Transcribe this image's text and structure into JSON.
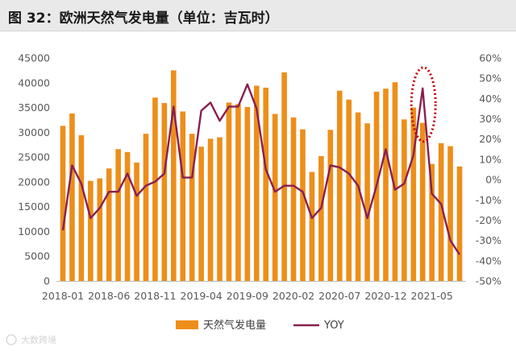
{
  "title": "图 32：欧洲天然气发电量（单位：吉瓦时）",
  "watermark": "大数跨境",
  "colors": {
    "bar": "#ED8E1A",
    "line": "#8A1F4F",
    "highlight": "#C00000",
    "axis": "#BFBFBF"
  },
  "chart_data": {
    "type": "bar+line",
    "title": "图 32：欧洲天然气发电量（单位：吉瓦时）",
    "categories": [
      "2018-01",
      "2018-02",
      "2018-03",
      "2018-04",
      "2018-05",
      "2018-06",
      "2018-07",
      "2018-08",
      "2018-09",
      "2018-10",
      "2018-11",
      "2018-12",
      "2019-01",
      "2019-02",
      "2019-03",
      "2019-04",
      "2019-05",
      "2019-06",
      "2019-07",
      "2019-08",
      "2019-09",
      "2019-10",
      "2019-11",
      "2019-12",
      "2020-01",
      "2020-02",
      "2020-03",
      "2020-04",
      "2020-05",
      "2020-06",
      "2020-07",
      "2020-08",
      "2020-09",
      "2020-10",
      "2020-11",
      "2020-12",
      "2021-01",
      "2021-02",
      "2021-03",
      "2021-04",
      "2021-05",
      "2021-06",
      "2021-07",
      "2021-08"
    ],
    "x_tick_labels": [
      "2018-01",
      "2018-06",
      "2018-11",
      "2019-04",
      "2019-09",
      "2020-02",
      "2020-07",
      "2020-12",
      "2021-05"
    ],
    "series": [
      {
        "name": "天然气发电量",
        "type": "bar",
        "axis": "left",
        "values": [
          31300,
          33800,
          29400,
          20200,
          20700,
          22700,
          26600,
          26000,
          23900,
          29700,
          37000,
          35900,
          42500,
          34200,
          29700,
          27100,
          28700,
          29000,
          36000,
          35700,
          35100,
          39400,
          39000,
          33700,
          42100,
          33000,
          30600,
          22000,
          25200,
          30500,
          38400,
          36600,
          34000,
          31800,
          38200,
          38800,
          40100,
          32600,
          35000,
          31900,
          23600,
          27800,
          27200,
          23100
        ]
      },
      {
        "name": "YOY",
        "type": "line",
        "axis": "right",
        "unit": "%",
        "values": [
          -25,
          7,
          -2,
          -19,
          -14,
          -6,
          -6,
          3,
          -8,
          -3,
          -1,
          3,
          36,
          1,
          1,
          34,
          38,
          29,
          36,
          36,
          47,
          35,
          5,
          -6,
          -3,
          -3,
          -6,
          -19,
          -14,
          7,
          6,
          3,
          -3,
          -19,
          -3,
          15,
          -5,
          -2,
          12,
          45,
          -7,
          -12,
          -30,
          -37
        ]
      }
    ],
    "ylim": [
      0,
      45000
    ],
    "y_ticks": [
      "0",
      "5000",
      "10000",
      "15000",
      "20000",
      "25000",
      "30000",
      "35000",
      "40000",
      "45000"
    ],
    "y2lim": [
      -50,
      60
    ],
    "y2_ticks": [
      "-50%",
      "-40%",
      "-30%",
      "-20%",
      "-10%",
      "0%",
      "10%",
      "20%",
      "30%",
      "40%",
      "50%",
      "60%"
    ],
    "highlight": {
      "category": "2021-04",
      "style": "dotted ellipse"
    },
    "grid": false,
    "legend_position": "bottom"
  }
}
